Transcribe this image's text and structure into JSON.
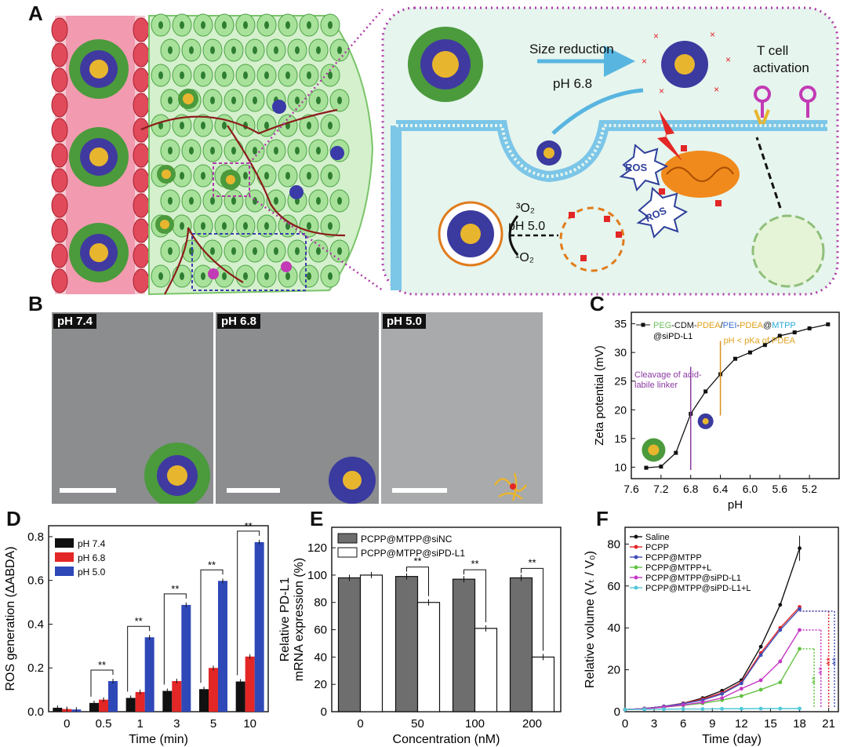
{
  "panels": {
    "A": {
      "letter": "A",
      "labels": {
        "size_reduction": "Size reduction",
        "ph68": "pH 6.8",
        "tcell_line1": "T cell",
        "tcell_line2": "activation",
        "ros": "ROS",
        "o2_3": "³O₂",
        "o2_1": "¹O₂",
        "ph50": "pH 5.0"
      }
    },
    "B": {
      "letter": "B",
      "tem_labels": [
        "pH 7.4",
        "pH 6.8",
        "pH 5.0"
      ]
    },
    "C": {
      "letter": "C"
    },
    "D": {
      "letter": "D"
    },
    "E": {
      "letter": "E"
    },
    "F": {
      "letter": "F"
    }
  },
  "colors": {
    "red": "#e32626",
    "blue": "#2f48b8",
    "black": "#111111",
    "grey_bar": "#6e6e6e",
    "panel_a_border": "#b03aa8",
    "green": "#6dbf5c"
  },
  "chart_data": [
    {
      "id": "C",
      "type": "line",
      "legend": [
        "PEG",
        "-CDM-",
        "PDEA",
        "/",
        "PEI",
        "-",
        "PDEA",
        "@",
        "MTPP",
        "@siPD-L1"
      ],
      "xlabel": "pH",
      "ylabel": "Zeta potential (mV)",
      "x_ticks": [
        "7.6",
        "7.2",
        "6.8",
        "6.4",
        "6.0",
        "5.6",
        "5.2"
      ],
      "y_ticks": [
        "10",
        "15",
        "20",
        "25",
        "30",
        "35"
      ],
      "xlim": [
        7.6,
        4.8
      ],
      "ylim": [
        8,
        37
      ],
      "x": [
        7.4,
        7.2,
        7.0,
        6.8,
        6.6,
        6.4,
        6.2,
        6.0,
        5.8,
        5.6,
        5.4,
        5.2,
        4.95
      ],
      "y": [
        9.9,
        10.1,
        12.5,
        19.3,
        23.2,
        26.2,
        28.9,
        30.0,
        31.3,
        32.9,
        33.5,
        34.2,
        34.9
      ],
      "annotations": [
        {
          "text": "Cleavage of acid-",
          "x": 6.8
        },
        {
          "text": "labile linker",
          "x": 6.8
        },
        {
          "text": "pH < pKa of PDEA",
          "x": 6.4
        }
      ]
    },
    {
      "id": "D",
      "type": "bar",
      "xlabel": "Time (min)",
      "ylabel": "ROS generation (ΔABDA)",
      "categories": [
        "0",
        "0.5",
        "1",
        "3",
        "5",
        "10"
      ],
      "y_ticks": [
        "0.0",
        "0.2",
        "0.4",
        "0.6",
        "0.8"
      ],
      "ylim": [
        0,
        0.85
      ],
      "series": [
        {
          "name": "pH 7.4",
          "values": [
            0.018,
            0.04,
            0.063,
            0.095,
            0.103,
            0.138
          ]
        },
        {
          "name": "pH 6.8",
          "values": [
            0.012,
            0.055,
            0.09,
            0.14,
            0.2,
            0.252
          ]
        },
        {
          "name": "pH 5.0",
          "values": [
            0.01,
            0.14,
            0.34,
            0.488,
            0.598,
            0.775
          ]
        }
      ],
      "significance": "**"
    },
    {
      "id": "E",
      "type": "bar",
      "xlabel": "Concentration (nM)",
      "ylabel_line1": "Relative PD-L1",
      "ylabel_line2": "mRNA expression (%)",
      "categories": [
        "0",
        "50",
        "100",
        "200"
      ],
      "y_ticks": [
        "0",
        "20",
        "40",
        "60",
        "80",
        "100",
        "120"
      ],
      "ylim": [
        0,
        135
      ],
      "series": [
        {
          "name": "PCPP@MTPP@siNC",
          "values": [
            98,
            99,
            97,
            98
          ]
        },
        {
          "name": "PCPP@MTPP@siPD-L1",
          "values": [
            100,
            80,
            61,
            40
          ]
        }
      ],
      "significance": "**"
    },
    {
      "id": "F",
      "type": "line",
      "xlabel": "Time (day)",
      "ylabel": "Relative volume (Vₜ / V₀)",
      "x_ticks": [
        "0",
        "3",
        "6",
        "9",
        "12",
        "15",
        "18",
        "21"
      ],
      "y_ticks": [
        "0",
        "20",
        "40",
        "60",
        "80"
      ],
      "xlim": [
        0,
        22
      ],
      "ylim": [
        0,
        88
      ],
      "x": [
        0,
        2,
        4,
        6,
        8,
        10,
        12,
        14,
        16,
        18
      ],
      "series": [
        {
          "name": "Saline",
          "values": [
            1,
            1.5,
            2.5,
            4,
            6.5,
            10,
            15,
            31,
            51,
            78
          ]
        },
        {
          "name": "PCPP",
          "values": [
            1,
            1.5,
            2.5,
            4,
            6,
            9,
            14,
            28,
            40,
            50
          ]
        },
        {
          "name": "PCPP@MTPP",
          "values": [
            1,
            1.5,
            2.5,
            3.8,
            5.5,
            8.5,
            13.5,
            27,
            39,
            49
          ]
        },
        {
          "name": "PCPP@MTPP+L",
          "values": [
            1,
            1.4,
            2.2,
            3,
            4,
            5.5,
            7.5,
            10.5,
            14,
            30
          ]
        },
        {
          "name": "PCPP@MTPP@siPD-L1",
          "values": [
            1,
            1.4,
            2.2,
            3.2,
            4.5,
            6.5,
            11,
            15,
            24,
            39
          ]
        },
        {
          "name": "PCPP@MTPP@siPD-L1+L",
          "values": [
            1,
            1.1,
            1.2,
            1.3,
            1.3,
            1.4,
            1.4,
            1.5,
            1.5,
            1.5
          ]
        }
      ],
      "colors": [
        "#111111",
        "#e32626",
        "#3f4fb8",
        "#62c242",
        "#c437c4",
        "#4fc8d8"
      ],
      "significance": "**"
    }
  ]
}
